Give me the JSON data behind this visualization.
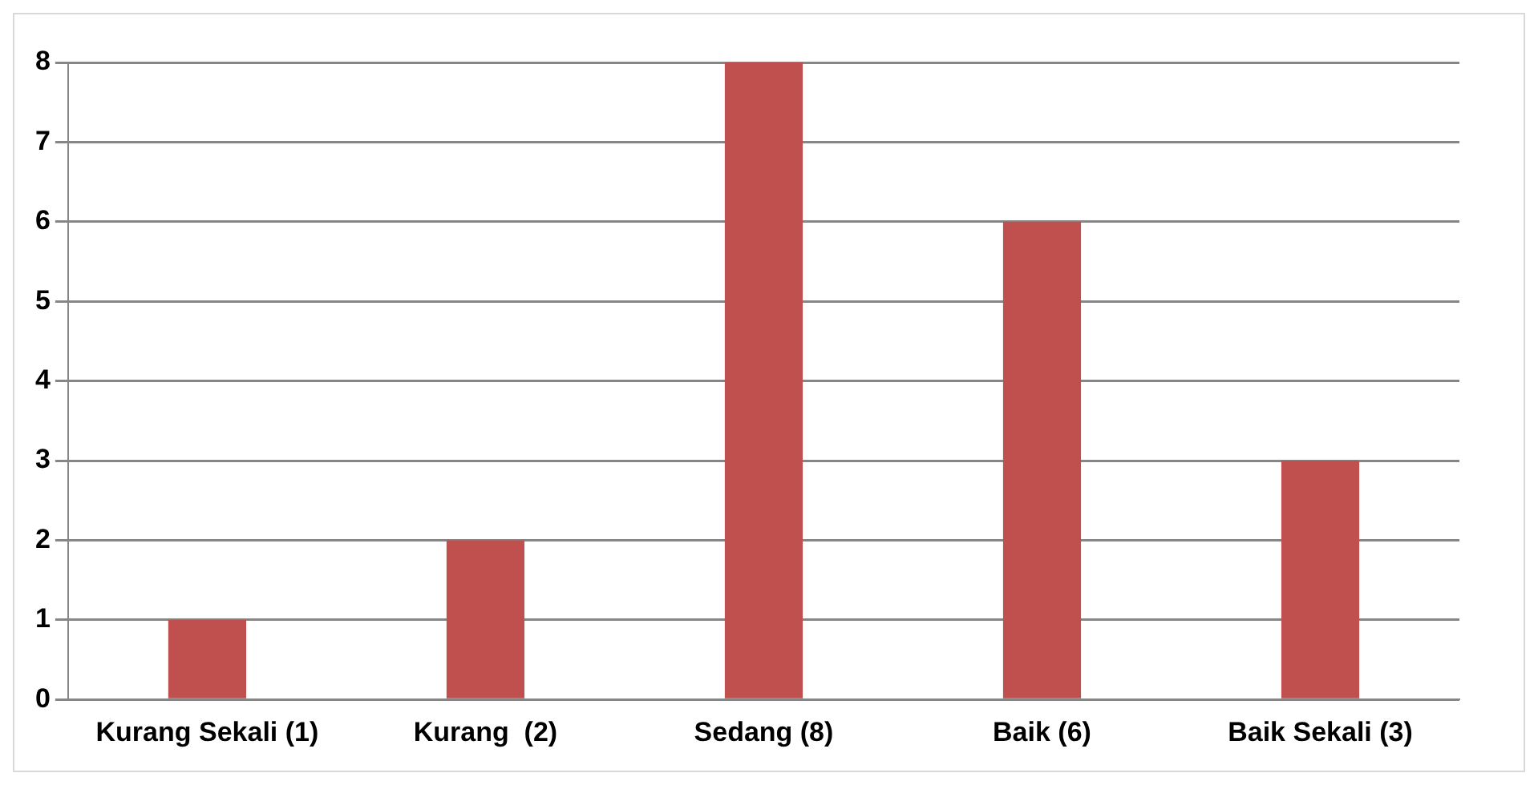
{
  "chart_data": {
    "type": "bar",
    "categories": [
      "Kurang Sekali (1)",
      "Kurang  (2)",
      "Sedang (8)",
      "Baik (6)",
      "Baik Sekali (3)"
    ],
    "values": [
      1,
      2,
      8,
      6,
      3
    ],
    "color": "#c0504d",
    "ylim": [
      0,
      8
    ],
    "yticks": [
      0,
      1,
      2,
      3,
      4,
      5,
      6,
      7,
      8
    ],
    "grid": "y",
    "legend": false
  }
}
